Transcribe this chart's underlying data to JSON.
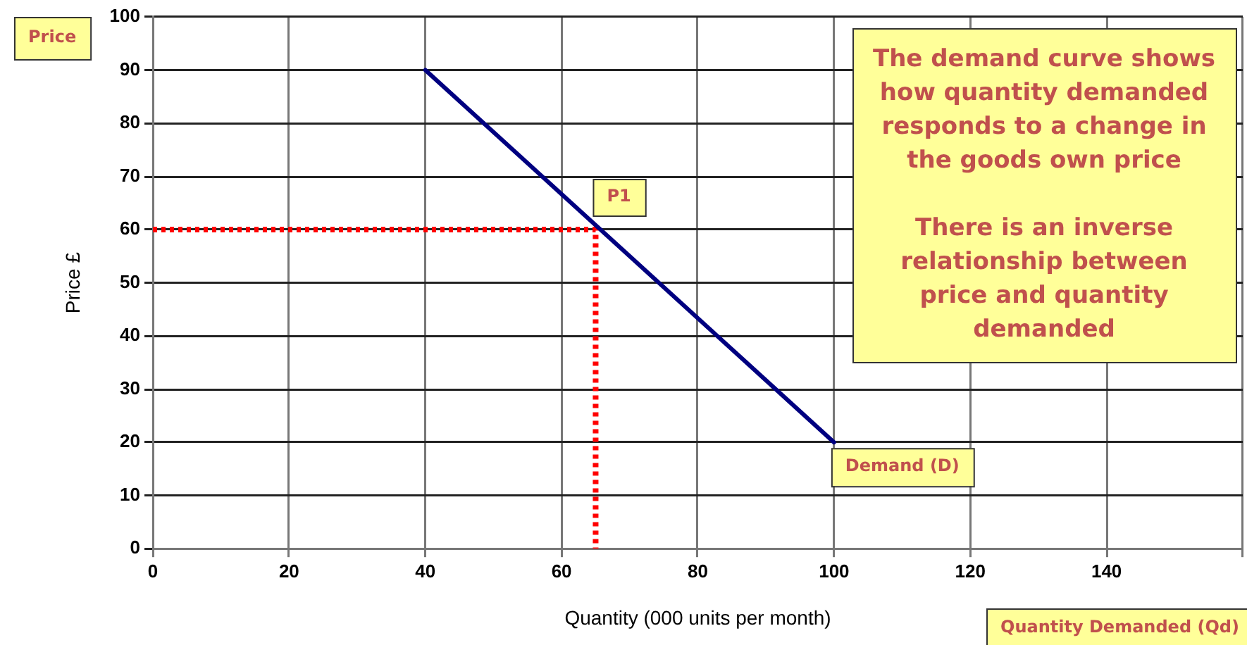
{
  "chart_data": {
    "type": "line",
    "xlabel": "Quantity (000 units per month)",
    "ylabel": "Price £",
    "xlim": [
      0,
      160
    ],
    "xticks": [
      0,
      20,
      40,
      60,
      80,
      100,
      120,
      140,
      {
        "value": 160,
        "label": null
      }
    ],
    "ylim": [
      0,
      100
    ],
    "yticks": [
      0,
      10,
      20,
      30,
      40,
      50,
      60,
      70,
      80,
      90,
      100
    ],
    "grid": true,
    "legend": false,
    "marker": "none",
    "series": [
      {
        "name": "Demand (D)",
        "color": "#000080",
        "x": [
          40,
          100
        ],
        "values": [
          90,
          20
        ],
        "line_style": "solid"
      },
      {
        "color": "#ff0000",
        "x": [
          0,
          65,
          65
        ],
        "values": [
          60,
          60,
          0
        ],
        "line_style": "dotted"
      }
    ],
    "annotations": [
      "Price",
      "Quantity Demanded (Qd)",
      "The demand curve shows\nhow quantity demanded\nresponds to a change in\nthe goods own price\n\nThere is an inverse\nrelationship between\nprice and quantity\ndemanded",
      {
        "text": "P1",
        "x": 65,
        "y": 60
      }
    ]
  }
}
